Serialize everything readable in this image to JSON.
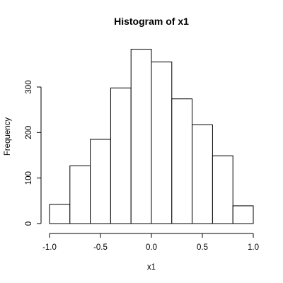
{
  "chart_data": {
    "type": "bar",
    "title": "Histogram of x1",
    "xlabel": "x1",
    "ylabel": "Frequency",
    "bins": [
      {
        "x0": -1.0,
        "x1": -0.8,
        "count": 42
      },
      {
        "x0": -0.8,
        "x1": -0.6,
        "count": 127
      },
      {
        "x0": -0.6,
        "x1": -0.4,
        "count": 185
      },
      {
        "x0": -0.4,
        "x1": -0.2,
        "count": 298
      },
      {
        "x0": -0.2,
        "x1": 0.0,
        "count": 383
      },
      {
        "x0": 0.0,
        "x1": 0.2,
        "count": 355
      },
      {
        "x0": 0.2,
        "x1": 0.4,
        "count": 274
      },
      {
        "x0": 0.4,
        "x1": 0.6,
        "count": 217
      },
      {
        "x0": 0.6,
        "x1": 0.8,
        "count": 149
      },
      {
        "x0": 0.8,
        "x1": 1.0,
        "count": 39
      }
    ],
    "xlim": [
      -1.0,
      1.0
    ],
    "ylim": [
      0,
      383
    ],
    "x_ticks": [
      -1.0,
      -0.5,
      0.0,
      0.5,
      1.0
    ],
    "x_tick_labels": [
      "-1.0",
      "-0.5",
      "0.0",
      "0.5",
      "1.0"
    ],
    "y_ticks": [
      0,
      100,
      200,
      300
    ],
    "y_tick_labels": [
      "0",
      "100",
      "200",
      "300"
    ],
    "grid": false,
    "legend": "none"
  }
}
